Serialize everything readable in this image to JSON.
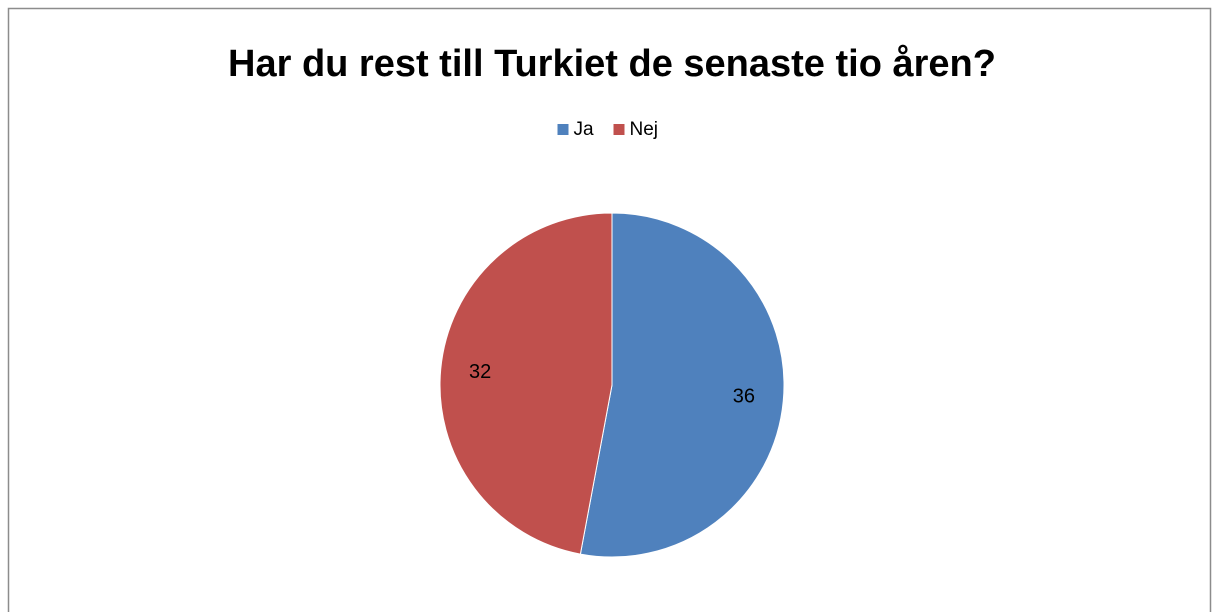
{
  "chart_data": {
    "type": "pie",
    "title": "Har du rest till Turkiet de senaste tio åren?",
    "categories": [
      "Ja",
      "Nej"
    ],
    "values": [
      36,
      32
    ],
    "colors": [
      "#4f81bd",
      "#c0504d"
    ],
    "legend": "top"
  }
}
